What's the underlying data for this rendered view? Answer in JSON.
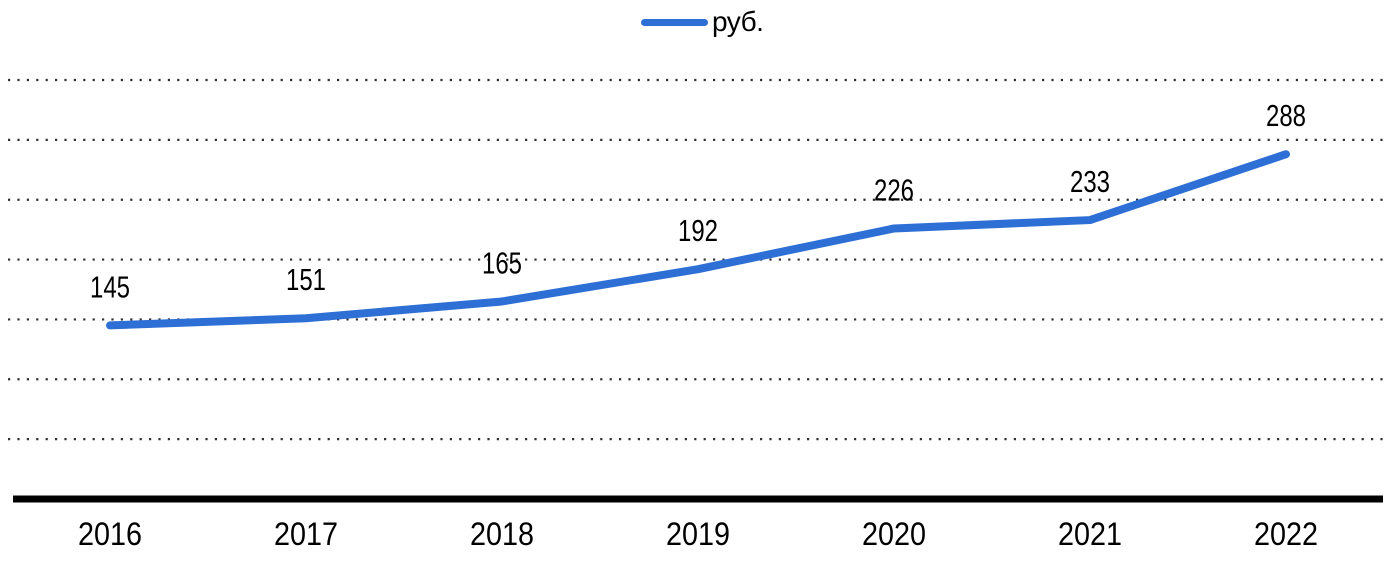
{
  "page": {
    "background": "#ffffff"
  },
  "legend": {
    "series_label": "руб."
  },
  "colors": {
    "line": "#2e6fd5",
    "axis": "#000000",
    "grid": "#303030",
    "text": "#000000"
  },
  "chart_data": {
    "type": "line",
    "title": "",
    "xlabel": "",
    "ylabel": "",
    "categories": [
      "2016",
      "2017",
      "2018",
      "2019",
      "2020",
      "2021",
      "2022"
    ],
    "series": [
      {
        "name": "руб.",
        "values": [
          145,
          151,
          165,
          192,
          226,
          233,
          288
        ]
      }
    ],
    "ylim": [
      0,
      350
    ],
    "grid_step": 50,
    "grid_style": "dotted-horizontal",
    "y_axis_labels_visible": false,
    "data_labels_visible": true,
    "legend_position": "top-center"
  }
}
